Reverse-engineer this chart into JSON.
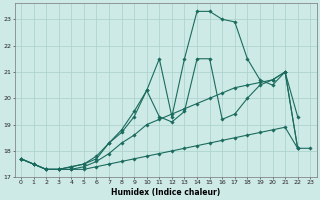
{
  "xlabel": "Humidex (Indice chaleur)",
  "xlim": [
    -0.5,
    23.5
  ],
  "ylim": [
    17.0,
    23.6
  ],
  "yticks": [
    17,
    18,
    19,
    20,
    21,
    22,
    23
  ],
  "xticks": [
    0,
    1,
    2,
    3,
    4,
    5,
    6,
    7,
    8,
    9,
    10,
    11,
    12,
    13,
    14,
    15,
    16,
    17,
    18,
    19,
    20,
    21,
    22,
    23
  ],
  "background_color": "#ceeae6",
  "grid_color": "#aed4ce",
  "line_color": "#1a6b5e",
  "series": [
    {
      "x": [
        0,
        1,
        2,
        3,
        4,
        5,
        6,
        7,
        8,
        9,
        10,
        11,
        12,
        13,
        14,
        15,
        16,
        17,
        18,
        19,
        20,
        21,
        22,
        23
      ],
      "y": [
        17.7,
        17.5,
        17.3,
        17.3,
        17.3,
        17.3,
        17.4,
        17.5,
        17.6,
        17.7,
        17.8,
        17.9,
        18.0,
        18.1,
        18.2,
        18.3,
        18.4,
        18.5,
        18.6,
        18.7,
        18.8,
        18.9,
        18.1,
        18.1
      ]
    },
    {
      "x": [
        0,
        1,
        2,
        3,
        4,
        5,
        6,
        7,
        8,
        9,
        10,
        11,
        12,
        13,
        14,
        15,
        16,
        17,
        18,
        19,
        20,
        21,
        22
      ],
      "y": [
        17.7,
        17.5,
        17.3,
        17.3,
        17.3,
        17.4,
        17.6,
        17.9,
        18.3,
        18.6,
        19.0,
        19.2,
        19.4,
        19.6,
        19.8,
        20.0,
        20.2,
        20.4,
        20.5,
        20.6,
        20.7,
        21.0,
        18.1
      ]
    },
    {
      "x": [
        0,
        1,
        2,
        3,
        4,
        5,
        6,
        7,
        8,
        9,
        10,
        11,
        12,
        13,
        14,
        15,
        16,
        17,
        18,
        19,
        20,
        21,
        22
      ],
      "y": [
        17.7,
        17.5,
        17.3,
        17.3,
        17.4,
        17.5,
        17.8,
        18.3,
        18.8,
        19.5,
        20.3,
        19.3,
        19.1,
        19.5,
        21.5,
        21.5,
        19.2,
        19.4,
        20.0,
        20.5,
        20.7,
        21.0,
        19.3
      ]
    },
    {
      "x": [
        0,
        1,
        2,
        3,
        4,
        5,
        6,
        7,
        8,
        9,
        10,
        11,
        12,
        13,
        14,
        15,
        16,
        17,
        18,
        19,
        20,
        21,
        22
      ],
      "y": [
        17.7,
        17.5,
        17.3,
        17.3,
        17.4,
        17.5,
        17.7,
        18.3,
        18.7,
        19.3,
        20.3,
        21.5,
        19.3,
        21.5,
        23.3,
        23.3,
        23.0,
        22.9,
        21.5,
        20.7,
        20.5,
        21.0,
        18.1
      ]
    }
  ]
}
